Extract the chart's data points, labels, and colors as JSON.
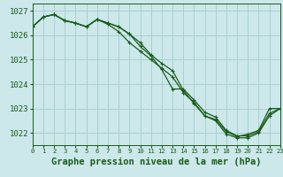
{
  "title": "Graphe pression niveau de la mer (hPa)",
  "background_color": "#cce8ea",
  "grid_color": "#aacfd2",
  "line_color": "#1a5c1a",
  "xlim": [
    0,
    23
  ],
  "ylim": [
    1021.5,
    1027.3
  ],
  "yticks": [
    1022,
    1023,
    1024,
    1025,
    1026,
    1027
  ],
  "xticks": [
    0,
    1,
    2,
    3,
    4,
    5,
    6,
    7,
    8,
    9,
    10,
    11,
    12,
    13,
    14,
    15,
    16,
    17,
    18,
    19,
    20,
    21,
    22,
    23
  ],
  "series": [
    {
      "x": [
        0,
        1,
        2,
        3,
        4,
        5,
        6,
        7,
        8,
        9,
        10,
        11,
        12,
        13,
        14,
        15,
        16,
        17,
        18,
        19,
        20,
        21,
        22,
        23
      ],
      "y": [
        1026.35,
        1026.75,
        1026.85,
        1026.6,
        1026.5,
        1026.35,
        1026.65,
        1026.45,
        1026.15,
        1025.7,
        1025.35,
        1025.0,
        1024.65,
        1024.3,
        1023.65,
        1023.25,
        1022.7,
        1022.55,
        1022.05,
        1021.85,
        1021.95,
        1022.1,
        1023.0,
        1023.0
      ]
    },
    {
      "x": [
        0,
        1,
        2,
        3,
        4,
        5,
        6,
        7,
        8,
        9,
        10,
        11,
        12,
        13,
        14,
        15,
        16,
        17,
        18,
        19,
        20,
        21,
        22,
        23
      ],
      "y": [
        1026.35,
        1026.75,
        1026.85,
        1026.6,
        1026.5,
        1026.35,
        1026.65,
        1026.5,
        1026.35,
        1026.05,
        1025.55,
        1025.15,
        1024.6,
        1023.8,
        1023.8,
        1023.35,
        1022.85,
        1022.65,
        1022.1,
        1021.88,
        1021.88,
        1022.05,
        1022.8,
        1023.0
      ]
    },
    {
      "x": [
        0,
        1,
        2,
        3,
        4,
        5,
        6,
        7,
        8,
        9,
        10,
        11,
        12,
        13,
        14,
        15,
        16,
        17,
        18,
        19,
        20,
        21,
        22,
        23
      ],
      "y": [
        1026.35,
        1026.75,
        1026.85,
        1026.6,
        1026.5,
        1026.35,
        1026.65,
        1026.5,
        1026.35,
        1026.05,
        1025.7,
        1025.2,
        1024.85,
        1024.55,
        1023.75,
        1023.2,
        1022.7,
        1022.5,
        1021.95,
        1021.8,
        1021.8,
        1022.0,
        1022.7,
        1023.0
      ]
    }
  ],
  "marker": "+",
  "markersize": 3,
  "linewidth": 0.9,
  "tick_fontsize": 6.5,
  "xlabel_fontsize": 7.5
}
